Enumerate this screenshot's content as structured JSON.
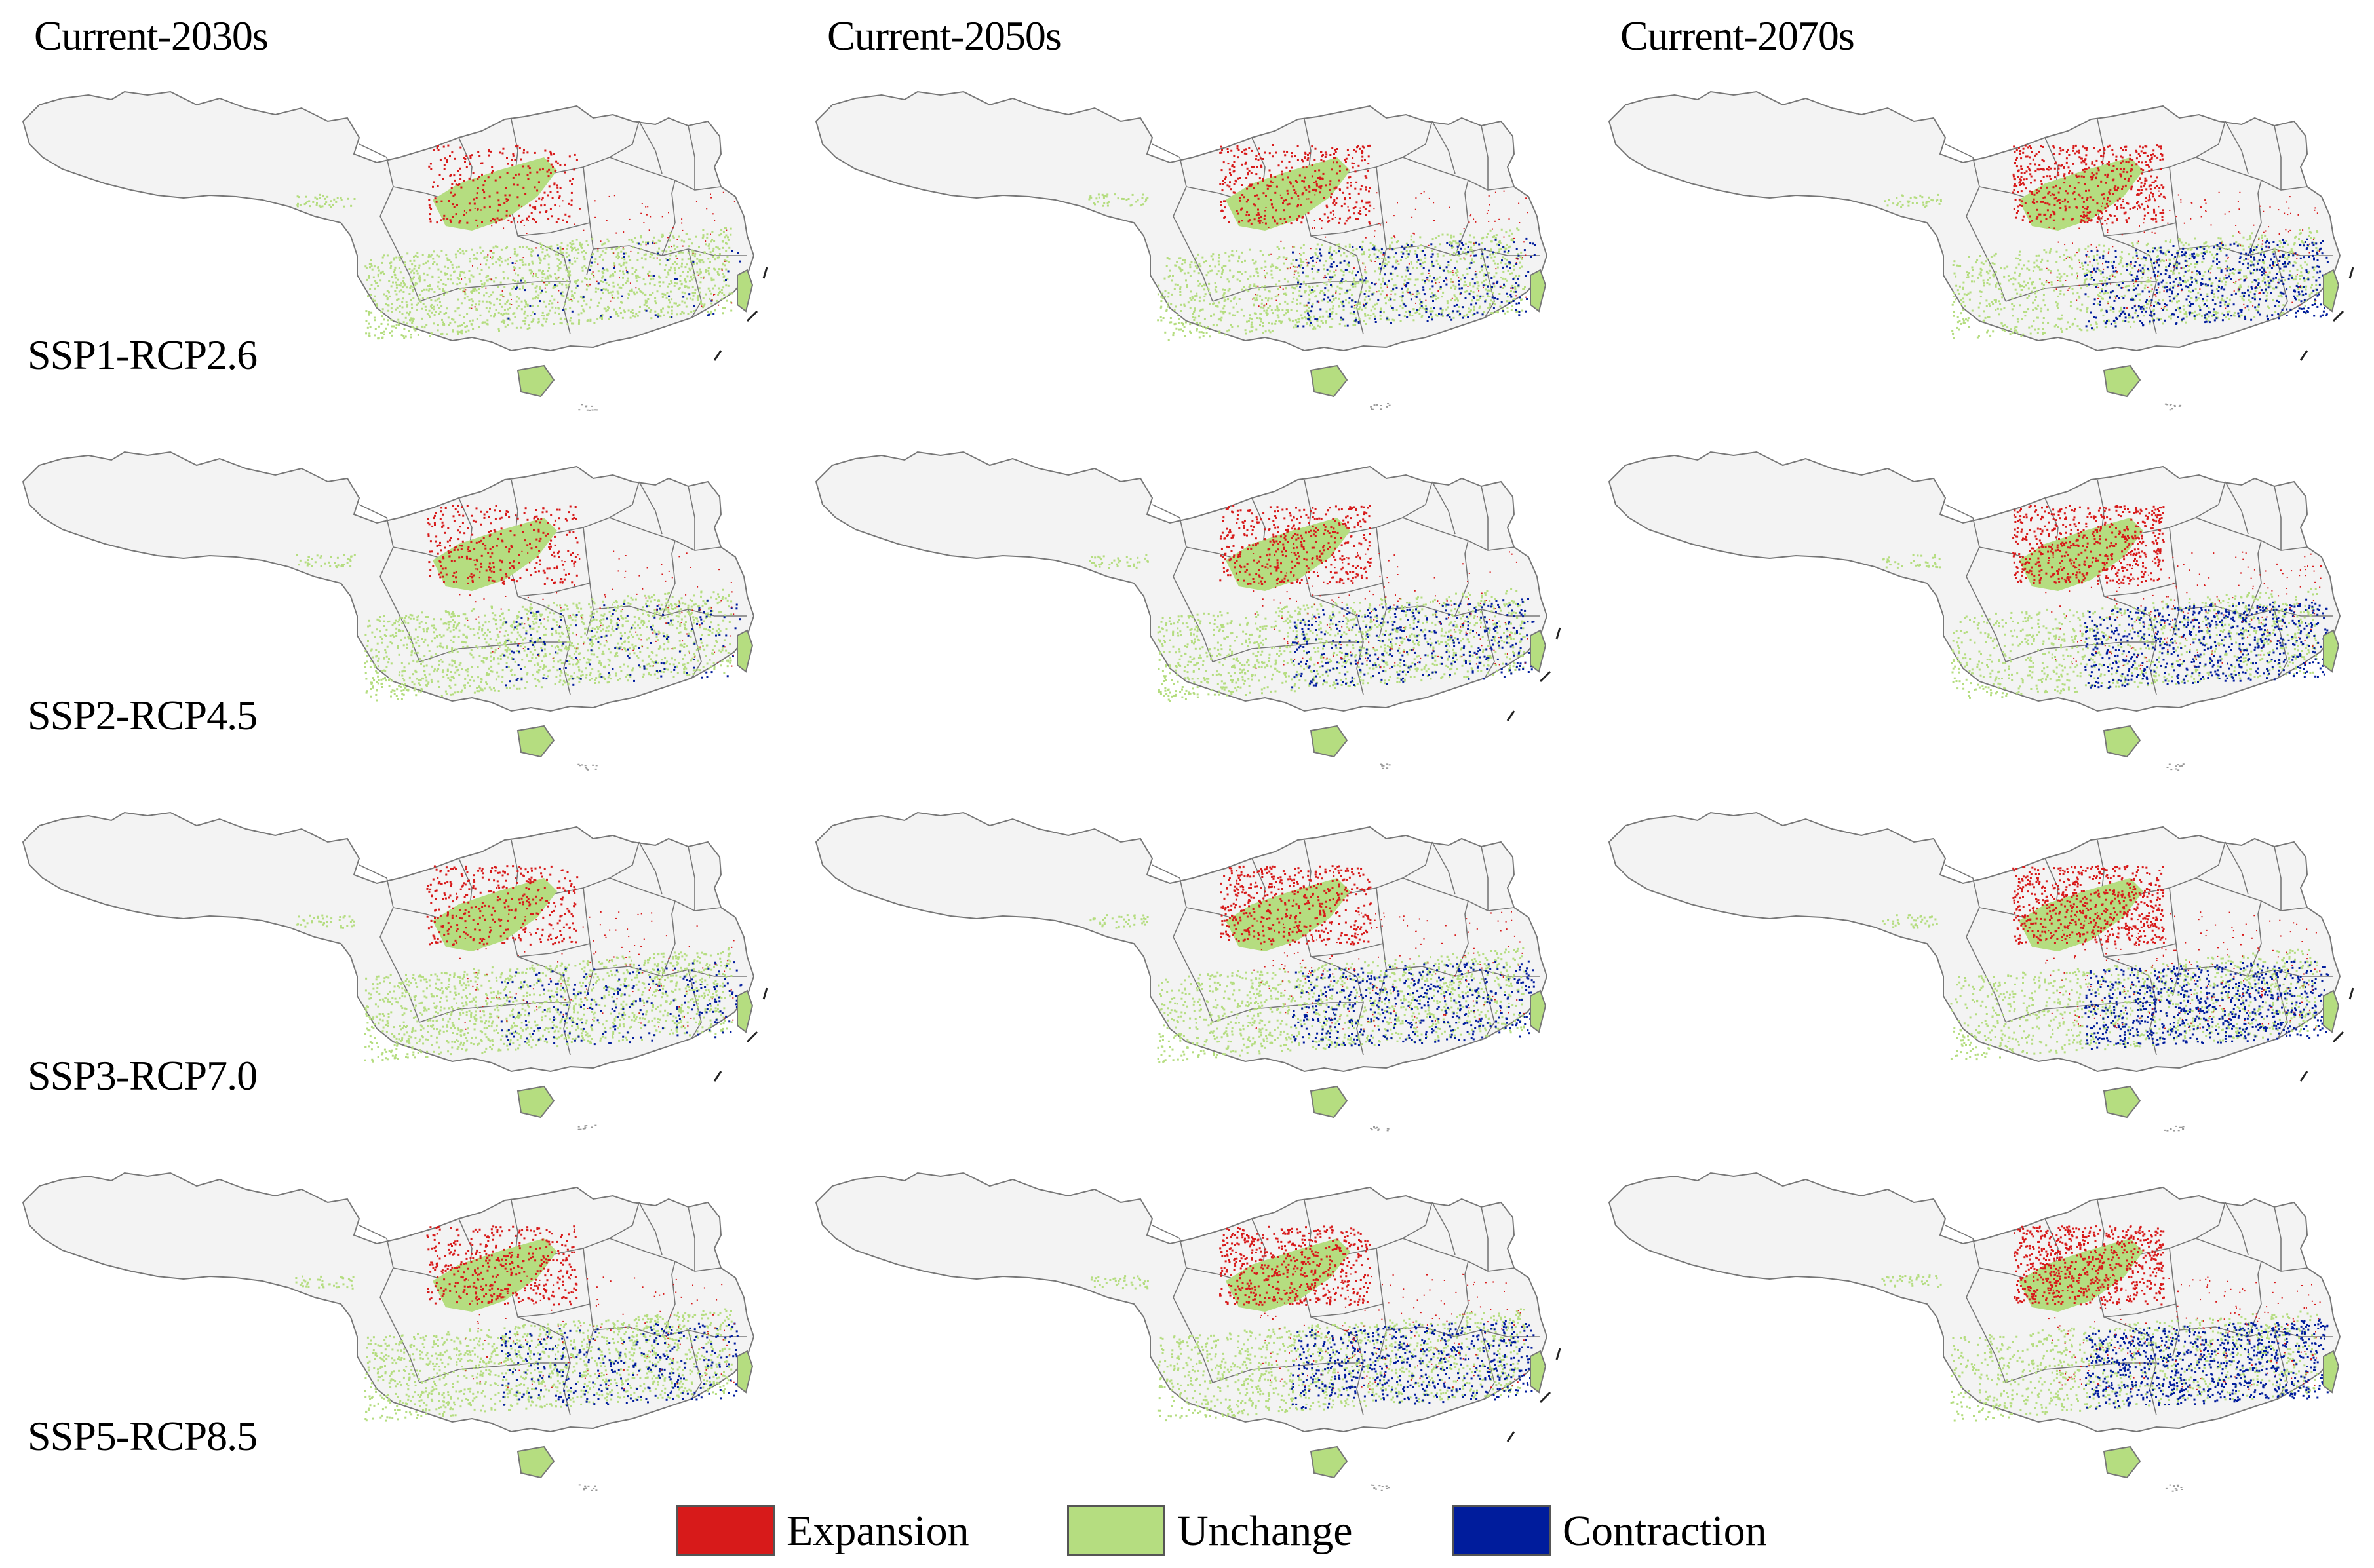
{
  "columns": [
    "Current-2030s",
    "Current-2050s",
    "Current-2070s"
  ],
  "rows": [
    "SSP1-RCP2.6",
    "SSP2-RCP4.5",
    "SSP3-RCP7.0",
    "SSP5-RCP8.5"
  ],
  "legend": {
    "items": [
      {
        "label": "Expansion",
        "color": "#d71a1a"
      },
      {
        "label": "Unchange",
        "color": "#b5dd80"
      },
      {
        "label": "Contraction",
        "color": "#001c9c"
      }
    ]
  },
  "map": {
    "base_fill": "#f3f3f3",
    "boundary_color": "#777777"
  }
}
